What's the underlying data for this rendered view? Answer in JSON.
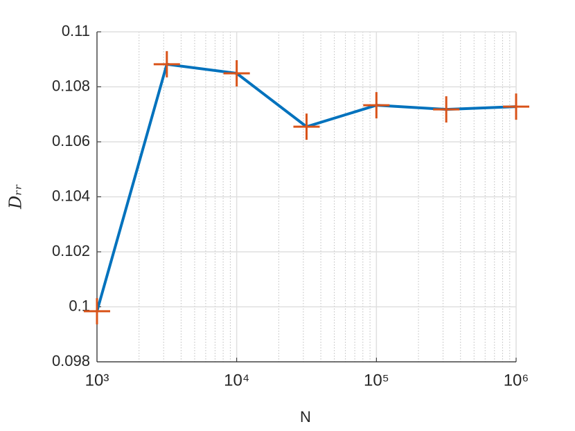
{
  "chart_data": {
    "type": "line",
    "xlabel": "N",
    "ylabel": "Dᵣᵣ",
    "xscale": "log",
    "grid": true,
    "minor_grid": true,
    "x": [
      1000,
      3162,
      10000,
      31623,
      100000,
      316228,
      1000000
    ],
    "series": [
      {
        "color": "#0072bd",
        "marker_color": "#d95319",
        "values": [
          0.09984,
          0.10882,
          0.10849,
          0.10655,
          0.10733,
          0.10718,
          0.10728
        ]
      }
    ],
    "xlim": [
      1000,
      1000000
    ],
    "xticks": [
      {
        "value": 1000,
        "label": "10³"
      },
      {
        "value": 10000,
        "label": "10⁴"
      },
      {
        "value": 100000,
        "label": "10⁵"
      },
      {
        "value": 1000000,
        "label": "10⁶"
      }
    ],
    "ylim": [
      0.098,
      0.11
    ],
    "yticks": [
      0.098,
      0.1,
      0.102,
      0.104,
      0.106,
      0.108,
      0.11
    ]
  }
}
